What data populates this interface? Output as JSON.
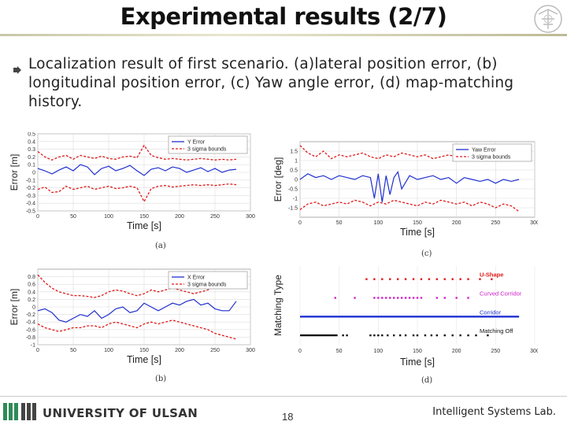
{
  "slide": {
    "title": "Experimental results (2/7)",
    "bullet_text": "Localization result of first scenario. (a)lateral position error, (b) longitudinal position error, (c) Yaw angle error, (d) map-matching history."
  },
  "footer": {
    "university": "UNIVERSITY OF ULSAN",
    "page": "18",
    "lab": "Intelligent Systems Lab."
  },
  "colors": {
    "error": "#1f2fd0",
    "bounds": "#e01818",
    "ushape": "#e01818",
    "curved": "#d020c8",
    "corridor": "#1f2fd0",
    "off": "#111111"
  },
  "chart_data": [
    {
      "id": "a",
      "type": "line",
      "caption": "(a)",
      "xlabel": "Time [s]",
      "ylabel": "Error [m]",
      "xlim": [
        0,
        300
      ],
      "ylim": [
        -0.5,
        0.5
      ],
      "xticks": [
        0,
        50,
        100,
        150,
        200,
        250,
        300
      ],
      "yticks": [
        0.5,
        0.4,
        0.3,
        0.2,
        0.1,
        0,
        -0.1,
        -0.2,
        -0.3,
        -0.4,
        -0.5
      ],
      "ytick_labels": [
        "0.5",
        "0.4",
        "0.3",
        "0.2",
        "0.1",
        "0",
        "-0.1",
        "-0.2",
        "-0.3",
        "-0.4",
        "-0.5"
      ],
      "legend": [
        "Y Error",
        "3 sigma bounds"
      ],
      "series": [
        {
          "name": "Y Error",
          "x": [
            0,
            10,
            20,
            30,
            40,
            50,
            60,
            70,
            80,
            90,
            100,
            110,
            120,
            130,
            140,
            150,
            160,
            170,
            180,
            190,
            200,
            210,
            220,
            230,
            240,
            250,
            260,
            270,
            280
          ],
          "values": [
            0.05,
            0.02,
            -0.02,
            0.03,
            0.07,
            0.02,
            0.1,
            0.07,
            -0.03,
            0.05,
            0.08,
            0.02,
            0.05,
            0.09,
            0.02,
            -0.04,
            0.04,
            0.06,
            0.02,
            0.07,
            0.05,
            0.0,
            0.03,
            0.06,
            0.01,
            0.05,
            0.0,
            0.03,
            0.04
          ]
        },
        {
          "name": "3 sigma bounds",
          "x": [
            0,
            10,
            20,
            30,
            40,
            50,
            60,
            70,
            80,
            90,
            100,
            110,
            120,
            130,
            140,
            150,
            160,
            170,
            180,
            190,
            200,
            210,
            220,
            230,
            240,
            250,
            260,
            270,
            280
          ],
          "values": [
            0.27,
            0.2,
            0.16,
            0.2,
            0.22,
            0.17,
            0.22,
            0.2,
            0.18,
            0.21,
            0.18,
            0.17,
            0.2,
            0.21,
            0.19,
            0.35,
            0.22,
            0.19,
            0.17,
            0.18,
            0.17,
            0.16,
            0.17,
            0.18,
            0.17,
            0.16,
            0.17,
            0.16,
            0.17
          ]
        },
        {
          "name": "3 sigma bounds",
          "x": [
            0,
            10,
            20,
            30,
            40,
            50,
            60,
            70,
            80,
            90,
            100,
            110,
            120,
            130,
            140,
            150,
            160,
            170,
            180,
            190,
            200,
            210,
            220,
            230,
            240,
            250,
            260,
            270,
            280
          ],
          "values": [
            -0.22,
            -0.19,
            -0.26,
            -0.25,
            -0.18,
            -0.22,
            -0.2,
            -0.18,
            -0.22,
            -0.2,
            -0.18,
            -0.21,
            -0.2,
            -0.18,
            -0.2,
            -0.38,
            -0.21,
            -0.18,
            -0.17,
            -0.19,
            -0.18,
            -0.17,
            -0.16,
            -0.17,
            -0.16,
            -0.17,
            -0.16,
            -0.15,
            -0.16
          ]
        }
      ]
    },
    {
      "id": "b",
      "type": "line",
      "caption": "(b)",
      "xlabel": "Time [s]",
      "ylabel": "Error [m]",
      "xlim": [
        0,
        300
      ],
      "ylim": [
        -1,
        1
      ],
      "xticks": [
        0,
        50,
        100,
        150,
        200,
        250,
        300
      ],
      "yticks": [
        0.8,
        0.6,
        0.4,
        0.2,
        0,
        -0.2,
        -0.4,
        -0.6,
        -0.8,
        -1
      ],
      "ytick_labels": [
        "0.8",
        "0.6",
        "0.4",
        "0.2",
        "0",
        "-0.2",
        "-0.4",
        "-0.6",
        "-0.8",
        "-1"
      ],
      "legend": [
        "X Error",
        "3 sigma bounds"
      ],
      "series": [
        {
          "name": "X Error",
          "x": [
            0,
            10,
            20,
            30,
            40,
            50,
            60,
            70,
            80,
            90,
            100,
            110,
            120,
            130,
            140,
            150,
            160,
            170,
            180,
            190,
            200,
            210,
            220,
            230,
            240,
            250,
            260,
            270,
            280
          ],
          "values": [
            -0.1,
            -0.05,
            -0.15,
            -0.35,
            -0.4,
            -0.3,
            -0.2,
            -0.25,
            -0.1,
            -0.3,
            -0.2,
            -0.05,
            0.0,
            -0.15,
            -0.1,
            0.1,
            0.0,
            -0.1,
            0.0,
            0.1,
            0.05,
            0.15,
            0.2,
            0.05,
            0.1,
            -0.05,
            -0.1,
            -0.1,
            0.15
          ]
        },
        {
          "name": "3 sigma bounds",
          "x": [
            0,
            10,
            20,
            30,
            40,
            50,
            60,
            70,
            80,
            90,
            100,
            110,
            120,
            130,
            140,
            150,
            160,
            170,
            180,
            190,
            200,
            210,
            220,
            230,
            240,
            250,
            260,
            270,
            280
          ],
          "values": [
            0.85,
            0.65,
            0.5,
            0.4,
            0.35,
            0.3,
            0.3,
            0.28,
            0.25,
            0.3,
            0.4,
            0.45,
            0.42,
            0.35,
            0.3,
            0.35,
            0.45,
            0.4,
            0.45,
            0.5,
            0.45,
            0.4,
            0.35,
            0.4,
            0.45,
            0.55,
            0.6,
            0.65,
            0.7
          ]
        },
        {
          "name": "3 sigma bounds",
          "x": [
            0,
            10,
            20,
            30,
            40,
            50,
            60,
            70,
            80,
            90,
            100,
            110,
            120,
            130,
            140,
            150,
            160,
            170,
            180,
            190,
            200,
            210,
            220,
            230,
            240,
            250,
            260,
            270,
            280
          ],
          "values": [
            -0.45,
            -0.55,
            -0.6,
            -0.65,
            -0.6,
            -0.55,
            -0.55,
            -0.5,
            -0.5,
            -0.55,
            -0.45,
            -0.4,
            -0.45,
            -0.5,
            -0.55,
            -0.45,
            -0.4,
            -0.45,
            -0.4,
            -0.35,
            -0.4,
            -0.45,
            -0.5,
            -0.55,
            -0.6,
            -0.7,
            -0.75,
            -0.8,
            -0.85
          ]
        }
      ]
    },
    {
      "id": "c",
      "type": "line",
      "caption": "(c)",
      "xlabel": "Time [s]",
      "ylabel": "Error [deg]",
      "xlim": [
        0,
        300
      ],
      "ylim": [
        -2,
        2
      ],
      "xticks": [
        0,
        50,
        100,
        150,
        200,
        250,
        300
      ],
      "yticks": [
        1.5,
        1,
        0.5,
        0,
        -0.5,
        -1,
        -1.5
      ],
      "ytick_labels": [
        "1.5",
        "1",
        "0.5",
        "0",
        "-0.5",
        "-1",
        "-1.5"
      ],
      "legend": [
        "Yaw Error",
        "3 sigma bounds"
      ],
      "series": [
        {
          "name": "Yaw Error",
          "x": [
            0,
            10,
            20,
            30,
            40,
            50,
            60,
            70,
            80,
            90,
            95,
            100,
            105,
            110,
            115,
            120,
            125,
            130,
            140,
            150,
            160,
            170,
            180,
            190,
            200,
            210,
            220,
            230,
            240,
            250,
            260,
            270,
            280
          ],
          "values": [
            0.0,
            0.3,
            0.1,
            0.2,
            0.0,
            0.2,
            0.1,
            0.0,
            0.2,
            0.1,
            -1.0,
            0.3,
            -1.2,
            0.2,
            -0.8,
            0.1,
            0.4,
            -0.5,
            0.2,
            0.0,
            0.1,
            0.2,
            0.0,
            0.1,
            -0.2,
            0.1,
            0.0,
            -0.1,
            0.0,
            -0.2,
            0.0,
            -0.1,
            0.0
          ]
        },
        {
          "name": "3 sigma bounds",
          "x": [
            0,
            10,
            20,
            30,
            40,
            50,
            60,
            70,
            80,
            90,
            100,
            110,
            120,
            130,
            140,
            150,
            160,
            170,
            180,
            190,
            200,
            210,
            220,
            230,
            240,
            250,
            260,
            270,
            280
          ],
          "values": [
            1.8,
            1.4,
            1.2,
            1.5,
            1.1,
            1.3,
            1.2,
            1.3,
            1.4,
            1.2,
            1.1,
            1.3,
            1.2,
            1.4,
            1.3,
            1.2,
            1.3,
            1.1,
            1.2,
            1.3,
            1.2,
            1.4,
            1.2,
            1.3,
            1.1,
            1.2,
            1.4,
            1.2,
            1.3
          ]
        },
        {
          "name": "3 sigma bounds",
          "x": [
            0,
            10,
            20,
            30,
            40,
            50,
            60,
            70,
            80,
            90,
            100,
            110,
            120,
            130,
            140,
            150,
            160,
            170,
            180,
            190,
            200,
            210,
            220,
            230,
            240,
            250,
            260,
            270,
            280
          ],
          "values": [
            -1.6,
            -1.3,
            -1.2,
            -1.4,
            -1.3,
            -1.2,
            -1.3,
            -1.1,
            -1.2,
            -1.4,
            -1.2,
            -1.3,
            -1.1,
            -1.2,
            -1.3,
            -1.4,
            -1.2,
            -1.3,
            -1.1,
            -1.2,
            -1.3,
            -1.2,
            -1.4,
            -1.2,
            -1.3,
            -1.5,
            -1.3,
            -1.4,
            -1.7
          ]
        }
      ]
    },
    {
      "id": "d",
      "type": "scatter",
      "caption": "(d)",
      "xlabel": "Time [s]",
      "ylabel": "Matching Type",
      "xlim": [
        0,
        300
      ],
      "xticks": [
        0,
        50,
        100,
        150,
        200,
        250,
        300
      ],
      "legend_labels": [
        "U-Shape",
        "Curved Corridor",
        "Corridor",
        "Matching Off"
      ],
      "levels": {
        "U-Shape": 4,
        "Curved Corridor": 3,
        "Corridor": 2,
        "Matching Off": 1
      },
      "series": [
        {
          "name": "U-Shape",
          "x": [
            85,
            95,
            105,
            115,
            125,
            135,
            145,
            155,
            165,
            175,
            185,
            195,
            205,
            215,
            230,
            245
          ]
        },
        {
          "name": "Curved Corridor",
          "x": [
            45,
            70,
            95,
            100,
            105,
            110,
            115,
            120,
            125,
            130,
            135,
            140,
            145,
            150,
            155,
            175,
            185,
            200,
            215
          ]
        },
        {
          "name": "Corridor",
          "x_ranges": [
            [
              0,
              280
            ]
          ]
        },
        {
          "name": "Matching Off",
          "x_ranges": [
            [
              0,
              48
            ]
          ],
          "x": [
            55,
            60,
            90,
            95,
            100,
            105,
            112,
            120,
            128,
            135,
            145,
            150,
            160,
            168,
            175,
            185,
            195,
            205,
            215,
            225,
            240
          ]
        }
      ]
    }
  ]
}
